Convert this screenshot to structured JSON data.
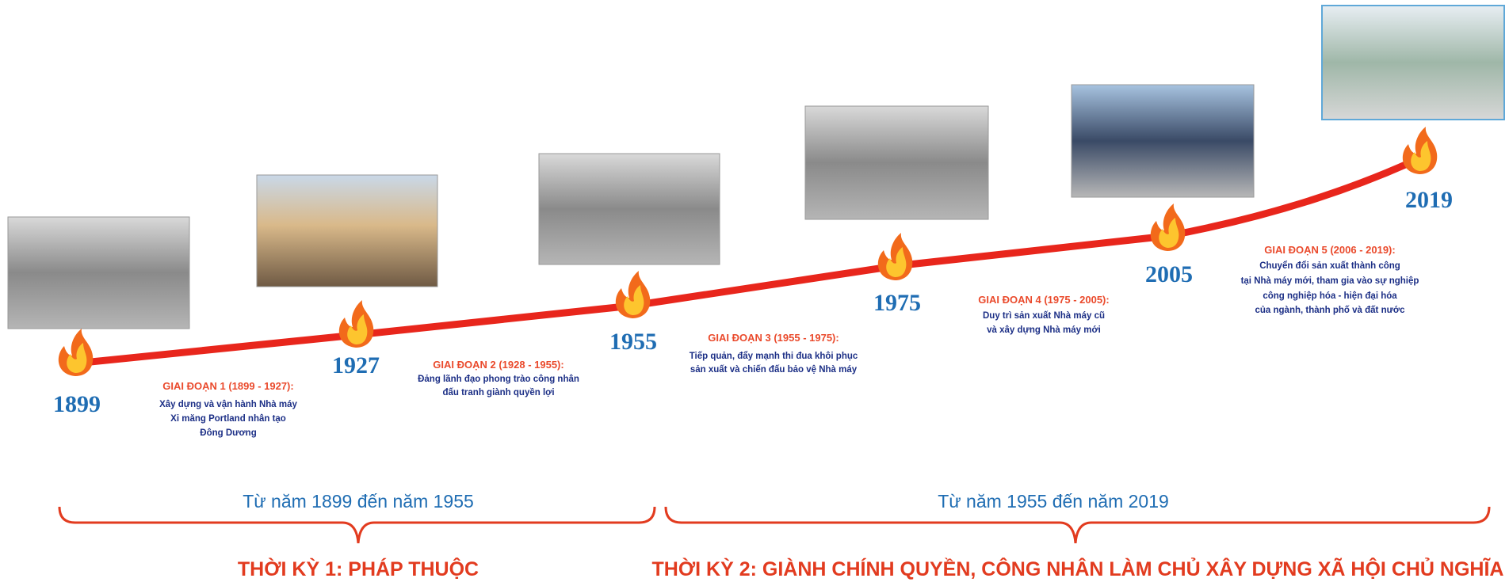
{
  "milestones": [
    "1899",
    "1927",
    "1955",
    "1975",
    "2005",
    "2019"
  ],
  "phases": [
    {
      "title": "GIAI ĐOẠN 1 (1899 - 1927):",
      "lines": [
        "Xây dựng và vận hành Nhà máy",
        "Xi măng Portland nhân tạo",
        "Đông Dương"
      ]
    },
    {
      "title": "GIAI ĐOẠN 2 (1928 - 1955):",
      "lines": [
        "Đảng lãnh đạo phong trào công nhân",
        "đấu tranh giành quyền lợi"
      ]
    },
    {
      "title": "GIAI ĐOẠN 3 (1955 - 1975):",
      "lines": [
        "Tiếp quản, đẩy mạnh thi đua khôi phục",
        "sản xuất và chiến đấu bảo vệ Nhà máy"
      ]
    },
    {
      "title": "GIAI ĐOẠN 4 (1975 - 2005):",
      "lines": [
        "Duy trì sản xuất Nhà máy cũ",
        "và xây dựng Nhà máy mới"
      ]
    },
    {
      "title": "GIAI ĐOẠN 5 (2006 - 2019):",
      "lines": [
        "Chuyển đổi sản xuất thành công",
        "tại Nhà máy mới, tham gia vào sự nghiệp",
        "công nghiệp hóa - hiện đại hóa",
        "của ngành, thành phố và đất nước"
      ]
    }
  ],
  "periods": [
    {
      "range": "Từ năm 1899 đến năm 1955",
      "title": "THỜI KỲ 1: PHÁP THUỘC"
    },
    {
      "range": "Từ năm 1955 đến năm 2019",
      "title": "THỜI KỲ 2: GIÀNH CHÍNH QUYỀN, CÔNG NHÂN LÀM CHỦ XÂY DỰNG XÃ HỘI CHỦ NGHĨA"
    }
  ]
}
